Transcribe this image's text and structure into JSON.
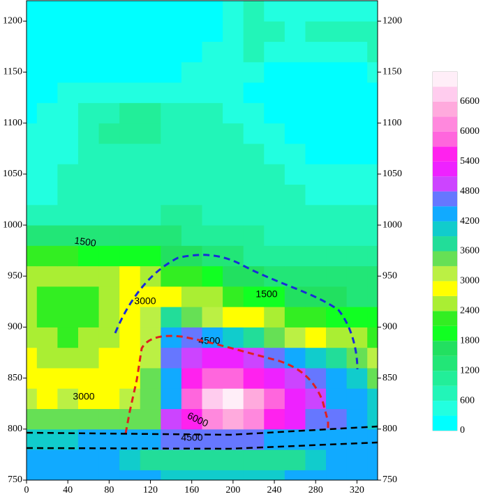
{
  "chart_data": {
    "type": "contour",
    "xlim": [
      0,
      340
    ],
    "ylim": [
      750,
      1220
    ],
    "xticks": [
      0,
      40,
      80,
      120,
      160,
      200,
      240,
      280,
      320
    ],
    "yticks": [
      750,
      800,
      850,
      900,
      950,
      1000,
      1050,
      1100,
      1150,
      1200
    ],
    "x": [
      0,
      20,
      40,
      60,
      80,
      100,
      120,
      140,
      160,
      180,
      200,
      220,
      240,
      260,
      280,
      300,
      320,
      340
    ],
    "y": [
      750,
      770,
      790,
      810,
      830,
      850,
      870,
      890,
      910,
      930,
      950,
      970,
      990,
      1010,
      1030,
      1050,
      1070,
      1090,
      1110,
      1130,
      1150,
      1170,
      1190,
      1210
    ],
    "z": [
      [
        4300,
        4300,
        4300,
        4300,
        4300,
        4300,
        4200,
        4100,
        4000,
        4000,
        4000,
        4000,
        4100,
        4200,
        4300,
        4300,
        4300,
        4300
      ],
      [
        4300,
        4300,
        4300,
        4300,
        4200,
        4100,
        3800,
        3700,
        3700,
        3700,
        3700,
        3800,
        3700,
        3800,
        4000,
        4200,
        4300,
        4300
      ],
      [
        4100,
        4100,
        4100,
        4200,
        4200,
        4300,
        4400,
        4500,
        4500,
        4500,
        4500,
        4500,
        4400,
        4300,
        4300,
        4300,
        4300,
        4300
      ],
      [
        3300,
        3300,
        3300,
        3300,
        3300,
        3300,
        3500,
        4800,
        5600,
        6200,
        6300,
        6000,
        5600,
        5100,
        4700,
        4500,
        4300,
        4100
      ],
      [
        3000,
        2900,
        3000,
        2900,
        2900,
        3000,
        3300,
        4400,
        5800,
        6600,
        6900,
        6400,
        5800,
        5300,
        4800,
        4400,
        4300,
        3900
      ],
      [
        2800,
        2800,
        2800,
        2800,
        2800,
        2900,
        3400,
        4200,
        5400,
        5700,
        5800,
        5600,
        5300,
        5000,
        4600,
        4200,
        4000,
        3500
      ],
      [
        2700,
        2600,
        2600,
        2600,
        2700,
        2800,
        3200,
        4600,
        5000,
        5100,
        5100,
        4900,
        4600,
        4300,
        4000,
        3700,
        3400,
        3000
      ],
      [
        2600,
        2400,
        2300,
        2400,
        2600,
        2900,
        3200,
        4200,
        4500,
        4300,
        4000,
        3800,
        3500,
        3200,
        2900,
        2600,
        2400,
        2300
      ],
      [
        2500,
        2200,
        2100,
        2200,
        2500,
        2900,
        3100,
        3600,
        3400,
        3100,
        2900,
        2700,
        2500,
        2300,
        2100,
        1900,
        1800,
        1800
      ],
      [
        2500,
        2300,
        2200,
        2300,
        2600,
        2900,
        2900,
        2800,
        2600,
        2400,
        2200,
        2000,
        1850,
        1700,
        1600,
        1500,
        1450,
        1450
      ],
      [
        2600,
        2600,
        2500,
        2450,
        2500,
        2700,
        2500,
        2300,
        2100,
        1900,
        1700,
        1550,
        1450,
        1350,
        1250,
        1200,
        1200,
        1200
      ],
      [
        2200,
        2200,
        2100,
        2000,
        1900,
        1850,
        1800,
        1700,
        1550,
        1400,
        1250,
        1150,
        1050,
        1000,
        950,
        900,
        900,
        900
      ],
      [
        1400,
        1400,
        1400,
        1350,
        1300,
        1300,
        1300,
        1250,
        1150,
        1050,
        950,
        900,
        850,
        800,
        750,
        750,
        750,
        750
      ],
      [
        750,
        750,
        800,
        850,
        850,
        850,
        850,
        900,
        900,
        850,
        800,
        750,
        700,
        650,
        650,
        600,
        600,
        600
      ],
      [
        500,
        550,
        650,
        700,
        650,
        650,
        700,
        750,
        800,
        800,
        750,
        700,
        650,
        600,
        550,
        500,
        500,
        500
      ],
      [
        400,
        500,
        600,
        650,
        650,
        600,
        600,
        700,
        750,
        750,
        700,
        650,
        600,
        500,
        400,
        350,
        350,
        400
      ],
      [
        350,
        450,
        550,
        600,
        700,
        800,
        700,
        700,
        700,
        700,
        650,
        600,
        500,
        350,
        200,
        150,
        150,
        200
      ],
      [
        300,
        400,
        500,
        600,
        900,
        1000,
        1000,
        800,
        700,
        650,
        600,
        500,
        350,
        200,
        100,
        100,
        100,
        150
      ],
      [
        250,
        350,
        450,
        600,
        800,
        900,
        900,
        700,
        600,
        600,
        500,
        400,
        200,
        100,
        100,
        100,
        100,
        150
      ],
      [
        200,
        250,
        350,
        450,
        500,
        500,
        500,
        500,
        500,
        550,
        400,
        250,
        150,
        100,
        100,
        100,
        100,
        200
      ],
      [
        100,
        100,
        150,
        200,
        200,
        200,
        200,
        250,
        300,
        400,
        500,
        400,
        250,
        150,
        150,
        200,
        250,
        350
      ],
      [
        100,
        100,
        100,
        100,
        100,
        100,
        100,
        150,
        200,
        300,
        500,
        600,
        450,
        300,
        300,
        400,
        500,
        600
      ],
      [
        100,
        100,
        100,
        100,
        100,
        100,
        100,
        100,
        150,
        250,
        500,
        700,
        600,
        500,
        600,
        600,
        600,
        600
      ],
      [
        100,
        100,
        100,
        100,
        100,
        100,
        100,
        100,
        100,
        200,
        400,
        600,
        500,
        500,
        500,
        500,
        500,
        500
      ]
    ],
    "levels": [
      0,
      300,
      600,
      900,
      1200,
      1500,
      1800,
      2100,
      2400,
      2700,
      3000,
      3300,
      3600,
      3900,
      4200,
      4500,
      4800,
      5100,
      5400,
      5700,
      6000,
      6300,
      6600,
      6900,
      7200
    ],
    "colors": [
      "#00ffff",
      "#22ffe0",
      "#22f5b8",
      "#22ee99",
      "#22e677",
      "#22e060",
      "#11ff22",
      "#33ee22",
      "#aaee33",
      "#ffff00",
      "#bbf044",
      "#66e055",
      "#22dd99",
      "#11cccc",
      "#11aaff",
      "#6677ff",
      "#cc44ff",
      "#ee22ff",
      "#ff22ee",
      "#ff66dd",
      "#ff88dd",
      "#ffaadd",
      "#ffccee",
      "#ffeef8"
    ],
    "colorbar_ticks": [
      0,
      600,
      1200,
      1800,
      2400,
      3000,
      3600,
      4200,
      4800,
      5400,
      6000,
      6600
    ],
    "contour_labels": [
      1500,
      1500,
      3000,
      4500,
      3000,
      6000,
      4500
    ]
  }
}
